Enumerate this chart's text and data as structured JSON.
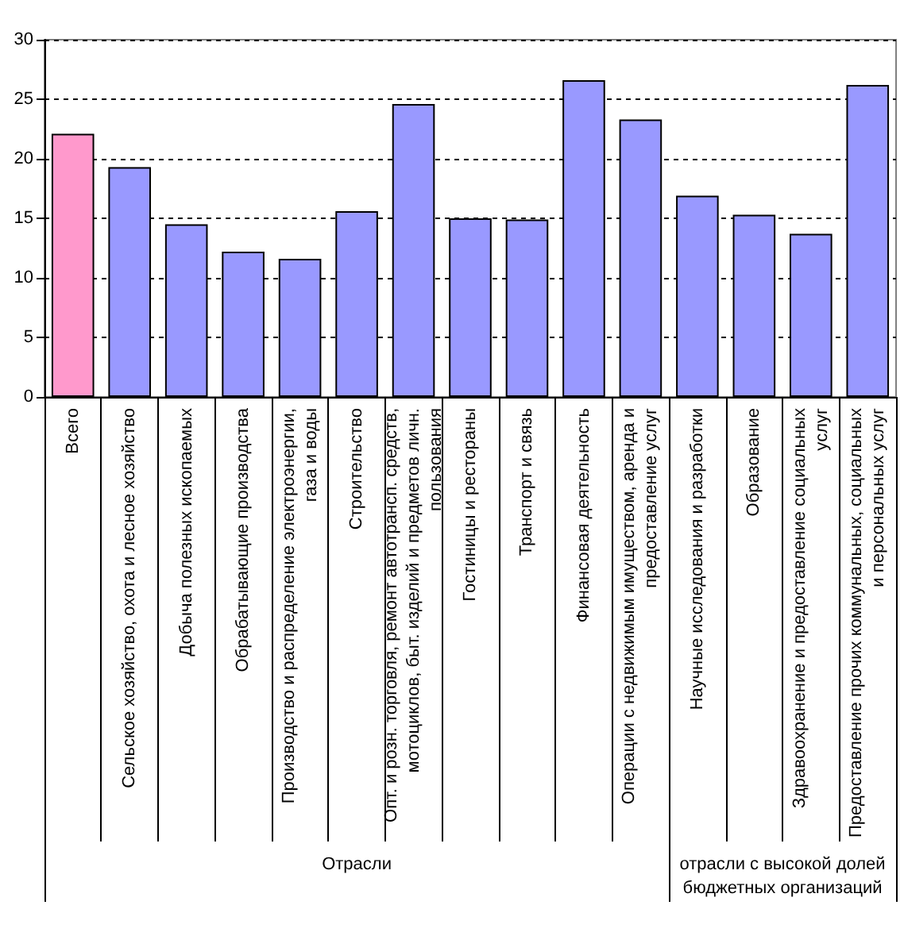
{
  "chart_data": {
    "type": "bar",
    "categories": [
      "Всего",
      "Сельское хозяйство, охота и лесное хозяйство",
      "Добыча полезных ископаемых",
      "Обрабатывающие производства",
      "Производство и распределение электроэнергии, газа и воды",
      "Строительство",
      "Опт. и розн. торговля, ремонт автотрансп. средств, мотоциклов, быт. изделий и предметов личн. пользования",
      "Гостиницы и рестораны",
      "Транспорт и связь",
      "Финансовая деятельность",
      "Операции с недвижимым имуществом, аренда и предоставление услуг",
      "Научные исследования и разработки",
      "Образование",
      "Здравоохранение и предоставление социальных услуг",
      "Предоставление прочих коммунальных, социальных и персональных услуг"
    ],
    "values": [
      22.1,
      19.3,
      14.5,
      12.2,
      11.6,
      15.6,
      24.6,
      15.0,
      14.9,
      26.6,
      23.3,
      16.9,
      15.3,
      13.7,
      26.2
    ],
    "colors": [
      "#ff99cc",
      "#9999ff",
      "#9999ff",
      "#9999ff",
      "#9999ff",
      "#9999ff",
      "#9999ff",
      "#9999ff",
      "#9999ff",
      "#9999ff",
      "#9999ff",
      "#9999ff",
      "#9999ff",
      "#9999ff",
      "#9999ff"
    ],
    "ylim": [
      0,
      30
    ],
    "yticks": [
      0,
      5,
      10,
      15,
      20,
      25,
      30
    ],
    "grid": "y",
    "annotations": [
      "Отрасли",
      "отрасли с высокой долей бюджетных организаций"
    ]
  }
}
